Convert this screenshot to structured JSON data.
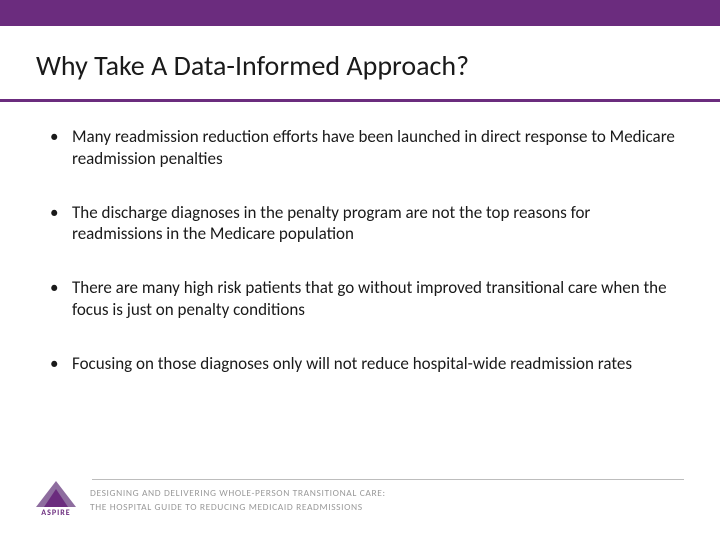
{
  "colors": {
    "brand_purple": "#6b2c7e",
    "brand_purple_light": "#8e6d9f",
    "text": "#1a1a1a",
    "footer_text": "#9a9a9a",
    "footer_rule": "#bdbdbd",
    "background": "#ffffff"
  },
  "title": "Why Take A Data-Informed Approach?",
  "bullets": [
    "Many readmission reduction efforts have been launched in direct response to Medicare readmission penalties",
    "The discharge diagnoses in the penalty program are not the top reasons for readmissions in the Medicare population",
    "There are many high risk patients that go without improved transitional care when the focus is just on penalty conditions",
    "Focusing on those diagnoses only will not reduce hospital-wide readmission rates"
  ],
  "footer": {
    "logo_text": "ASPIRE",
    "line1": "DESIGNING AND DELIVERING WHOLE-PERSON TRANSITIONAL CARE:",
    "line2": "THE HOSPITAL GUIDE TO REDUCING MEDICAID READMISSIONS"
  }
}
